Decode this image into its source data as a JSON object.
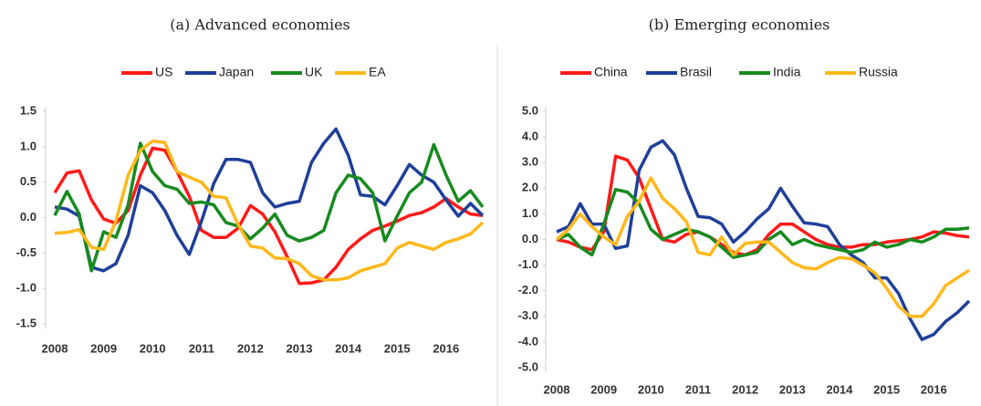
{
  "chart_data": [
    {
      "type": "line",
      "title": "(a) Advanced economies",
      "categories": [
        "2008",
        null,
        null,
        null,
        "2009",
        null,
        null,
        null,
        "2010",
        null,
        null,
        null,
        "2011",
        null,
        null,
        null,
        "2012",
        null,
        null,
        null,
        "2013",
        null,
        null,
        null,
        "2014",
        null,
        null,
        null,
        "2015",
        null,
        null,
        null,
        "2016",
        null,
        null,
        null
      ],
      "ylim": [
        -1.5,
        1.5
      ],
      "yticks": [
        {
          "value": -1.5,
          "label": "-1.5"
        },
        {
          "value": -1,
          "label": "-1.0"
        },
        -0.5,
        {
          "value": 0,
          "label": "0.0"
        },
        0.5,
        {
          "value": 1,
          "label": "1.0"
        },
        1.5
      ],
      "legend": "top",
      "series": [
        {
          "name": "US",
          "color": "#ff1a1a",
          "values": [
            0.35,
            0.63,
            0.66,
            0.25,
            -0.02,
            -0.08,
            0.1,
            0.6,
            0.98,
            0.95,
            0.65,
            0.3,
            -0.18,
            -0.28,
            -0.28,
            -0.15,
            0.17,
            0.05,
            -0.2,
            -0.55,
            -0.93,
            -0.92,
            -0.88,
            -0.7,
            -0.45,
            -0.3,
            -0.18,
            -0.12,
            -0.05,
            0.03,
            0.07,
            0.15,
            0.27,
            0.15,
            0.05,
            0.03
          ]
        },
        {
          "name": "Japan",
          "color": "#1f3f99",
          "values": [
            0.15,
            0.12,
            0.02,
            -0.7,
            -0.75,
            -0.65,
            -0.25,
            0.45,
            0.35,
            0.1,
            -0.25,
            -0.52,
            -0.05,
            0.48,
            0.82,
            0.82,
            0.78,
            0.35,
            0.15,
            0.2,
            0.23,
            0.78,
            1.05,
            1.25,
            0.88,
            0.32,
            0.3,
            0.18,
            0.45,
            0.75,
            0.6,
            0.5,
            0.25,
            0.02,
            0.2,
            0.03
          ]
        },
        {
          "name": "UK",
          "color": "#178a1f",
          "values": [
            0.03,
            0.37,
            0.05,
            -0.75,
            -0.2,
            -0.28,
            0.18,
            1.05,
            0.65,
            0.45,
            0.4,
            0.2,
            0.22,
            0.18,
            -0.07,
            -0.12,
            -0.3,
            -0.15,
            0.05,
            -0.25,
            -0.33,
            -0.28,
            -0.18,
            0.35,
            0.6,
            0.55,
            0.35,
            -0.33,
            0.02,
            0.35,
            0.5,
            1.03,
            0.6,
            0.23,
            0.38,
            0.15
          ]
        },
        {
          "name": "EA",
          "color": "#ffb81a",
          "values": [
            -0.22,
            -0.21,
            -0.17,
            -0.42,
            -0.45,
            -0.05,
            0.6,
            0.95,
            1.08,
            1.06,
            0.65,
            0.57,
            0.5,
            0.3,
            0.28,
            -0.1,
            -0.4,
            -0.43,
            -0.57,
            -0.58,
            -0.65,
            -0.82,
            -0.88,
            -0.88,
            -0.85,
            -0.75,
            -0.7,
            -0.65,
            -0.43,
            -0.35,
            -0.4,
            -0.45,
            -0.35,
            -0.3,
            -0.23,
            -0.07
          ]
        }
      ]
    },
    {
      "type": "line",
      "title": "(b) Emerging economies",
      "categories": [
        "2008",
        null,
        null,
        null,
        "2009",
        null,
        null,
        null,
        "2010",
        null,
        null,
        null,
        "2011",
        null,
        null,
        null,
        "2012",
        null,
        null,
        null,
        "2013",
        null,
        null,
        null,
        "2014",
        null,
        null,
        null,
        "2015",
        null,
        null,
        null,
        "2016",
        null,
        null,
        null
      ],
      "ylim": [
        -5,
        5
      ],
      "yticks": [
        {
          "value": -5,
          "label": "-5.0"
        },
        {
          "value": -4,
          "label": "-4.0"
        },
        {
          "value": -3,
          "label": "-3.0"
        },
        {
          "value": -2,
          "label": "-2.0"
        },
        {
          "value": -1,
          "label": "-1.0"
        },
        {
          "value": 0,
          "label": "0.0"
        },
        {
          "value": 1,
          "label": "1.0"
        },
        {
          "value": 2,
          "label": "2.0"
        },
        {
          "value": 3,
          "label": "3.0"
        },
        {
          "value": 4,
          "label": "4.0"
        },
        {
          "value": 5,
          "label": "5.0"
        }
      ],
      "legend": "top",
      "series": [
        {
          "name": "China",
          "color": "#ff1a1a",
          "values": [
            0.0,
            -0.1,
            -0.3,
            -0.4,
            0.3,
            3.25,
            3.1,
            2.4,
            1.2,
            0.0,
            -0.1,
            0.2,
            0.3,
            0.1,
            -0.2,
            -0.5,
            -0.6,
            -0.4,
            0.2,
            0.6,
            0.6,
            0.3,
            0.0,
            -0.2,
            -0.3,
            -0.3,
            -0.2,
            -0.2,
            -0.1,
            -0.05,
            0.0,
            0.1,
            0.3,
            0.25,
            0.15,
            0.1
          ]
        },
        {
          "name": "Brasil",
          "color": "#1f3f99",
          "values": [
            0.3,
            0.5,
            1.4,
            0.6,
            0.6,
            -0.35,
            -0.25,
            2.7,
            3.6,
            3.85,
            3.3,
            2.0,
            0.9,
            0.85,
            0.6,
            -0.1,
            0.3,
            0.8,
            1.2,
            2.0,
            1.3,
            0.65,
            0.6,
            0.5,
            -0.2,
            -0.6,
            -0.9,
            -1.5,
            -1.5,
            -2.1,
            -3.1,
            -3.9,
            -3.7,
            -3.2,
            -2.85,
            -2.4
          ]
        },
        {
          "name": "India",
          "color": "#178a1f",
          "values": [
            0.0,
            0.2,
            -0.3,
            -0.6,
            0.6,
            1.95,
            1.85,
            1.4,
            0.4,
            0.0,
            0.2,
            0.4,
            0.3,
            0.1,
            -0.3,
            -0.7,
            -0.6,
            -0.5,
            0.0,
            0.3,
            -0.2,
            0.0,
            -0.2,
            -0.3,
            -0.4,
            -0.5,
            -0.4,
            -0.1,
            -0.3,
            -0.2,
            0.0,
            -0.1,
            0.1,
            0.4,
            0.4,
            0.45
          ]
        },
        {
          "name": "Russia",
          "color": "#ffb81a",
          "values": [
            0.0,
            0.4,
            1.0,
            0.5,
            0.1,
            -0.2,
            0.9,
            1.5,
            2.4,
            1.6,
            1.2,
            0.7,
            -0.5,
            -0.6,
            0.1,
            -0.6,
            -0.15,
            -0.1,
            -0.1,
            -0.5,
            -0.9,
            -1.1,
            -1.15,
            -0.9,
            -0.7,
            -0.75,
            -1.0,
            -1.3,
            -1.9,
            -2.6,
            -3.0,
            -3.0,
            -2.5,
            -1.8,
            -1.5,
            -1.2
          ]
        }
      ]
    }
  ]
}
